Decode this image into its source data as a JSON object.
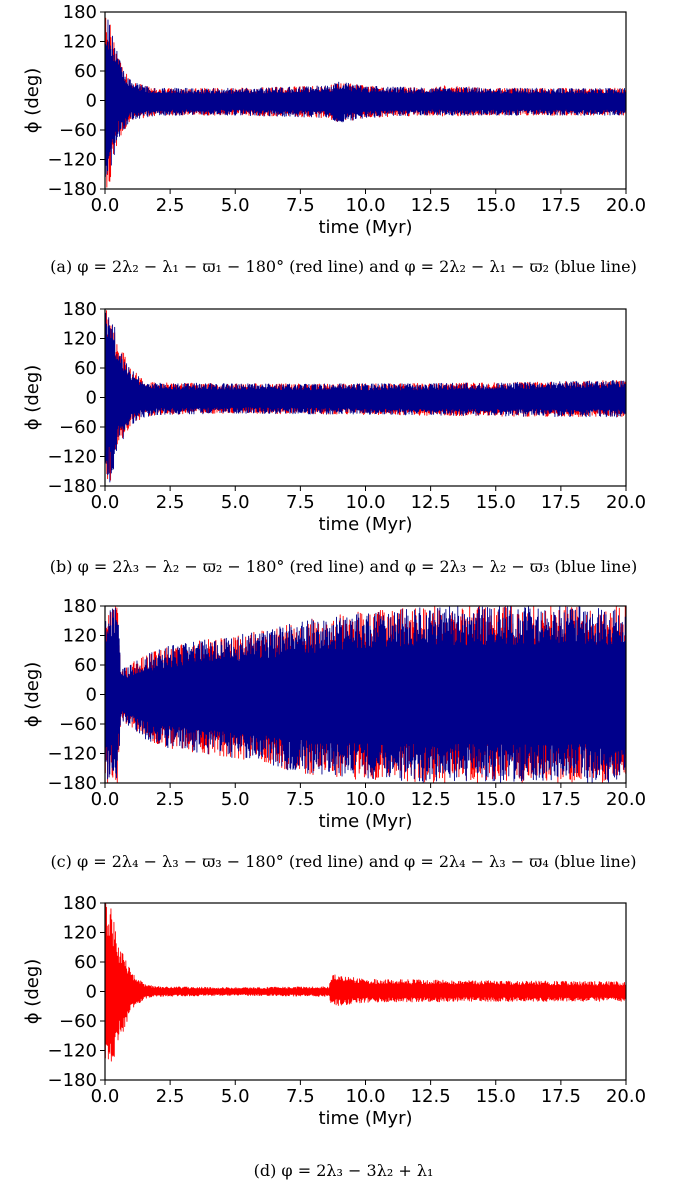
{
  "chart_data": [
    {
      "type": "line",
      "panel_label": "(a)",
      "caption": "(a)  φ = 2λ₂ − λ₁ − ϖ₁ − 180° (red line) and φ = 2λ₂ − λ₁ − ϖ₂ (blue line)",
      "xlabel": "time (Myr)",
      "ylabel": "ϕ (deg)",
      "xlim": [
        0,
        20
      ],
      "ylim": [
        -180,
        180
      ],
      "xticks": [
        "0.0",
        "2.5",
        "5.0",
        "7.5",
        "10.0",
        "12.5",
        "15.0",
        "17.5",
        "20.0"
      ],
      "yticks": [
        "180",
        "120",
        "60",
        "0",
        "−60",
        "−120",
        "−180"
      ],
      "grid": false,
      "series": [
        {
          "name": "red line",
          "color": "#ff0000",
          "envelope_x": [
            0,
            0.2,
            0.5,
            1.0,
            1.5,
            2.0,
            5,
            8.5,
            9.0,
            10,
            12.5,
            13,
            15,
            20
          ],
          "envelope_upper": [
            180,
            170,
            90,
            40,
            30,
            25,
            25,
            30,
            38,
            30,
            25,
            30,
            25,
            25
          ],
          "envelope_lower": [
            -180,
            -170,
            -80,
            -40,
            -35,
            -30,
            -30,
            -35,
            -45,
            -35,
            -30,
            -32,
            -30,
            -30
          ]
        },
        {
          "name": "blue line",
          "color": "#00008b",
          "envelope_x": [
            0,
            0.2,
            0.5,
            1.0,
            1.5,
            2.0,
            5,
            8.5,
            9.0,
            10,
            12.5,
            13,
            15,
            20
          ],
          "envelope_upper": [
            180,
            170,
            90,
            40,
            30,
            25,
            25,
            30,
            38,
            30,
            25,
            28,
            25,
            25
          ],
          "envelope_lower": [
            -180,
            -170,
            -80,
            -40,
            -35,
            -30,
            -30,
            -35,
            -45,
            -35,
            -30,
            -30,
            -30,
            -30
          ]
        }
      ]
    },
    {
      "type": "line",
      "panel_label": "(b)",
      "caption": "(b)  φ = 2λ₃ − λ₂ − ϖ₂ − 180° (red line) and φ = 2λ₃ − λ₂ − ϖ₃ (blue line)",
      "xlabel": "time (Myr)",
      "ylabel": "ϕ (deg)",
      "xlim": [
        0,
        20
      ],
      "ylim": [
        -180,
        180
      ],
      "xticks": [
        "0.0",
        "2.5",
        "5.0",
        "7.5",
        "10.0",
        "12.5",
        "15.0",
        "17.5",
        "20.0"
      ],
      "yticks": [
        "180",
        "120",
        "60",
        "0",
        "−60",
        "−120",
        "−180"
      ],
      "grid": false,
      "series": [
        {
          "name": "red line",
          "color": "#ff0000",
          "envelope_x": [
            0,
            0.2,
            0.5,
            1.0,
            1.5,
            2.0,
            5,
            10,
            15,
            20
          ],
          "envelope_upper": [
            180,
            175,
            120,
            60,
            35,
            30,
            28,
            28,
            30,
            35
          ],
          "envelope_lower": [
            -180,
            -175,
            -110,
            -55,
            -40,
            -35,
            -32,
            -35,
            -38,
            -40
          ]
        },
        {
          "name": "blue line",
          "color": "#00008b",
          "envelope_x": [
            0,
            0.2,
            0.5,
            1.0,
            1.5,
            2.0,
            5,
            10,
            15,
            20
          ],
          "envelope_upper": [
            180,
            175,
            120,
            60,
            35,
            30,
            28,
            28,
            30,
            35
          ],
          "envelope_lower": [
            -180,
            -175,
            -110,
            -55,
            -40,
            -35,
            -32,
            -35,
            -38,
            -40
          ]
        }
      ]
    },
    {
      "type": "line",
      "panel_label": "(c)",
      "caption": "(c)  φ = 2λ₄ − λ₃ − ϖ₃ − 180° (red line) and φ = 2λ₄ − λ₃ − ϖ₄ (blue line)",
      "xlabel": "time (Myr)",
      "ylabel": "ϕ (deg)",
      "xlim": [
        0,
        20
      ],
      "ylim": [
        -180,
        180
      ],
      "xticks": [
        "0.0",
        "2.5",
        "5.0",
        "7.5",
        "10.0",
        "12.5",
        "15.0",
        "17.5",
        "20.0"
      ],
      "yticks": [
        "180",
        "120",
        "60",
        "0",
        "−60",
        "−120",
        "−180"
      ],
      "grid": false,
      "series": [
        {
          "name": "red line",
          "color": "#ff0000",
          "envelope_x": [
            0,
            0.3,
            0.5,
            0.6,
            1.5,
            2.5,
            5,
            7.5,
            10,
            12.5,
            15,
            20
          ],
          "envelope_upper": [
            180,
            180,
            180,
            50,
            80,
            100,
            120,
            150,
            170,
            180,
            180,
            180
          ],
          "envelope_lower": [
            -180,
            -180,
            -180,
            -50,
            -90,
            -110,
            -130,
            -160,
            -175,
            -180,
            -180,
            -180
          ]
        },
        {
          "name": "blue line",
          "color": "#00008b",
          "envelope_x": [
            0,
            0.3,
            0.5,
            0.6,
            1.5,
            2.5,
            5,
            7.5,
            10,
            12.5,
            15,
            20
          ],
          "envelope_upper": [
            180,
            180,
            180,
            50,
            80,
            100,
            120,
            150,
            170,
            180,
            180,
            180
          ],
          "envelope_lower": [
            -180,
            -180,
            -180,
            -50,
            -90,
            -110,
            -130,
            -160,
            -175,
            -180,
            -180,
            -180
          ]
        }
      ]
    },
    {
      "type": "line",
      "panel_label": "(d)",
      "caption": "(d)  φ = 2λ₃ − 3λ₂ + λ₁",
      "xlabel": "time (Myr)",
      "ylabel": "ϕ (deg)",
      "xlim": [
        0,
        20
      ],
      "ylim": [
        -180,
        180
      ],
      "xticks": [
        "0.0",
        "2.5",
        "5.0",
        "7.5",
        "10.0",
        "12.5",
        "15.0",
        "17.5",
        "20.0"
      ],
      "yticks": [
        "180",
        "120",
        "60",
        "0",
        "−60",
        "−120",
        "−180"
      ],
      "grid": false,
      "series": [
        {
          "name": "",
          "color": "#ff0000",
          "envelope_x": [
            0,
            0.2,
            0.5,
            1.0,
            1.5,
            2.0,
            5,
            8.6,
            8.7,
            10,
            15,
            20
          ],
          "envelope_upper": [
            180,
            175,
            110,
            40,
            15,
            10,
            8,
            10,
            35,
            25,
            22,
            20
          ],
          "envelope_lower": [
            -180,
            -175,
            -110,
            -40,
            -15,
            -10,
            -8,
            -10,
            -30,
            -22,
            -20,
            -20
          ]
        }
      ]
    }
  ]
}
